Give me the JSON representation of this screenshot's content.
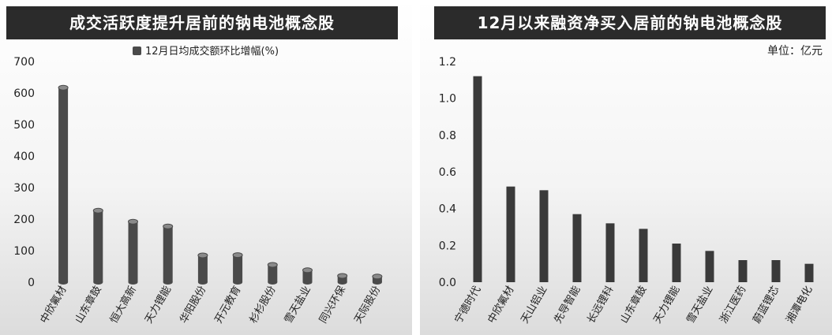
{
  "chart_data": [
    {
      "type": "bar",
      "title": "成交活跃度提升居前的钠电池概念股",
      "legend": [
        "12月日均成交额环比增幅(%)"
      ],
      "categories": [
        "中欣氟材",
        "山东章鼓",
        "恒大高新",
        "天力锂能",
        "华阳股份",
        "开元教育",
        "杉杉股份",
        "雪天盐业",
        "同兴环保",
        "天际股份"
      ],
      "series": [
        {
          "name": "12月日均成交额环比增幅(%)",
          "values": [
            617,
            227,
            192,
            177,
            85,
            86,
            55,
            38,
            20,
            18
          ]
        }
      ],
      "ylim": [
        0,
        700
      ],
      "yticks": [
        "0",
        "100",
        "200",
        "300",
        "400",
        "500",
        "600",
        "700"
      ],
      "color": "#4a4a4a"
    },
    {
      "type": "bar",
      "title": "12月以来融资净买入居前的钠电池概念股",
      "unit": "单位：亿元",
      "categories": [
        "宁德时代",
        "中欣氟材",
        "天山铝业",
        "先导智能",
        "长远锂科",
        "山东章鼓",
        "天力锂能",
        "雪天盐业",
        "浙江医药",
        "蔚蓝锂芯",
        "湘潭电化"
      ],
      "series": [
        {
          "values": [
            1.12,
            0.52,
            0.5,
            0.37,
            0.32,
            0.29,
            0.21,
            0.17,
            0.12,
            0.12,
            0.1
          ]
        }
      ],
      "ylim": [
        0,
        1.2
      ],
      "yticks": [
        "0.0",
        "0.2",
        "0.4",
        "0.6",
        "0.8",
        "1.0",
        "1.2"
      ],
      "color": "#3a3a3a"
    }
  ]
}
